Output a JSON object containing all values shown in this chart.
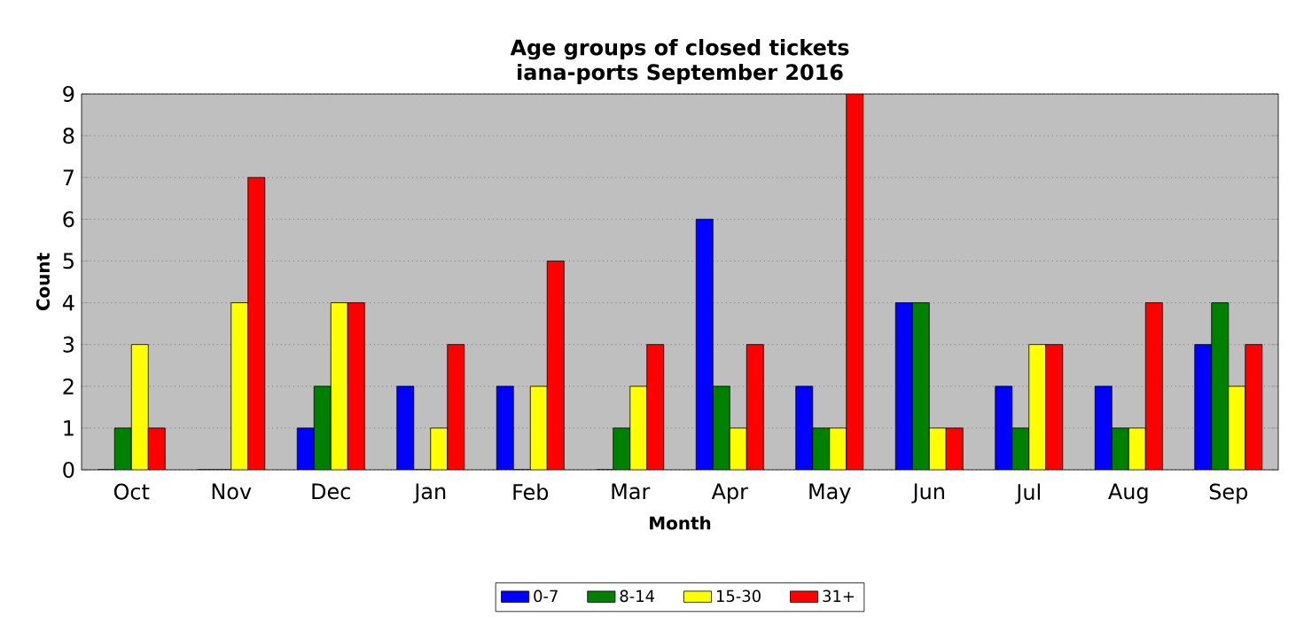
{
  "chart_data": {
    "type": "bar",
    "title": "Age groups of closed tickets",
    "subtitle": "iana-ports September 2016",
    "xlabel": "Month",
    "ylabel": "Count",
    "categories": [
      "Oct",
      "Nov",
      "Dec",
      "Jan",
      "Feb",
      "Mar",
      "Apr",
      "May",
      "Jun",
      "Jul",
      "Aug",
      "Sep"
    ],
    "series": [
      {
        "name": "0-7",
        "color": "#0000ff",
        "values": [
          0,
          0,
          1,
          2,
          2,
          0,
          6,
          2,
          4,
          2,
          2,
          3
        ]
      },
      {
        "name": "8-14",
        "color": "#008000",
        "values": [
          1,
          0,
          2,
          0,
          0,
          1,
          2,
          1,
          4,
          1,
          1,
          4
        ]
      },
      {
        "name": "15-30",
        "color": "#ffff00",
        "values": [
          3,
          4,
          4,
          1,
          2,
          2,
          1,
          1,
          1,
          3,
          1,
          2
        ]
      },
      {
        "name": "31+",
        "color": "#ff0000",
        "values": [
          1,
          7,
          4,
          3,
          5,
          3,
          3,
          9,
          1,
          3,
          4,
          3
        ]
      }
    ],
    "ylim": [
      0,
      9
    ],
    "yticks": [
      0,
      1,
      2,
      3,
      4,
      5,
      6,
      7,
      8,
      9
    ],
    "grid": "y",
    "legend": "bottom"
  }
}
